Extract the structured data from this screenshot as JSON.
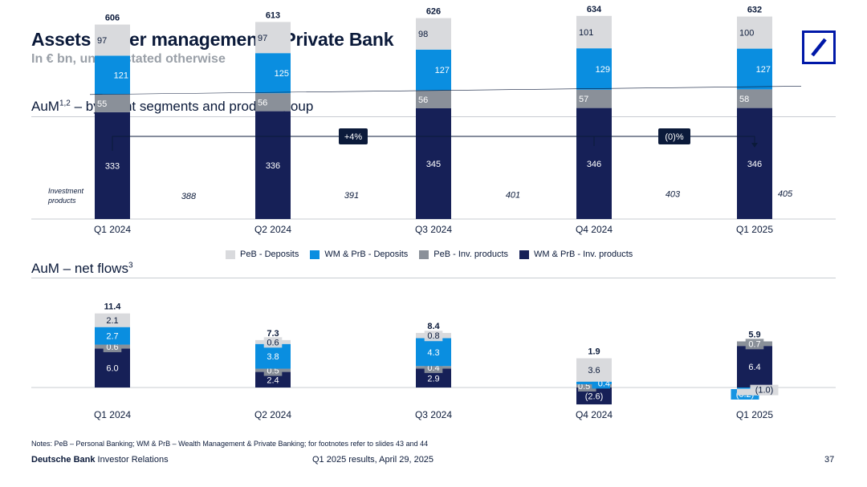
{
  "header": {
    "title": "Assets under management – Private Bank",
    "subtitle": "In € bn, unless stated otherwise"
  },
  "sections": {
    "aum_title": "AuM",
    "aum_sup": "1,2",
    "aum_title_rest": " – by client segments and product group",
    "flows_title": "AuM – net flows",
    "flows_sup": "3"
  },
  "colors": {
    "peb_deposits": "#d9dadd",
    "wm_deposits": "#0a8ee0",
    "peb_inv": "#8a9099",
    "wm_inv": "#162057",
    "navy": "#0b1a3a"
  },
  "legend": [
    {
      "label": "PeB - Deposits",
      "color": "#d9dadd"
    },
    {
      "label": "WM & PrB - Deposits",
      "color": "#0a8ee0"
    },
    {
      "label": "PeB - Inv. products",
      "color": "#8a9099"
    },
    {
      "label": "WM & PrB - Inv. products",
      "color": "#162057"
    }
  ],
  "chart_data": [
    {
      "type": "bar",
      "title": "AuM – by client segments and product group",
      "categories": [
        "Q1 2024",
        "Q2 2024",
        "Q3 2024",
        "Q4 2024",
        "Q1 2025"
      ],
      "series": [
        {
          "name": "WM & PrB - Inv. products",
          "values": [
            333,
            336,
            345,
            346,
            346
          ]
        },
        {
          "name": "PeB - Inv. products",
          "values": [
            55,
            56,
            56,
            57,
            58
          ]
        },
        {
          "name": "WM & PrB - Deposits",
          "values": [
            121,
            125,
            127,
            129,
            127
          ]
        },
        {
          "name": "PeB - Deposits",
          "values": [
            97,
            97,
            98,
            101,
            100
          ]
        }
      ],
      "totals": [
        "606",
        "613",
        "626",
        "634",
        "632"
      ],
      "investment_products_label": "Investment products",
      "investment_products_totals": [
        "388",
        "391",
        "401",
        "403",
        "405"
      ],
      "annotations": [
        {
          "label": "+4%",
          "from": "Q1 2024",
          "to": "Q4 2024"
        },
        {
          "label": "(0)%",
          "from": "Q4 2024",
          "to": "Q1 2025"
        }
      ]
    },
    {
      "type": "bar",
      "title": "AuM – net flows",
      "categories": [
        "Q1 2024",
        "Q2 2024",
        "Q3 2024",
        "Q4 2024",
        "Q1 2025"
      ],
      "series": [
        {
          "name": "WM & PrB - Inv. products",
          "values": [
            6.0,
            2.4,
            2.9,
            -2.6,
            6.4
          ],
          "labels": [
            "6.0",
            "2.4",
            "2.9",
            "(2.6)",
            "6.4"
          ]
        },
        {
          "name": "PeB - Inv. products",
          "values": [
            0.6,
            0.5,
            0.4,
            0.5,
            0.7
          ],
          "labels": [
            "0.6",
            "0.5",
            "0.4",
            "0.5",
            "0.7"
          ]
        },
        {
          "name": "WM & PrB - Deposits",
          "values": [
            2.7,
            3.8,
            4.3,
            0.4,
            -0.2
          ],
          "labels": [
            "2.7",
            "3.8",
            "4.3",
            "0.4",
            "(0.2)"
          ]
        },
        {
          "name": "PeB - Deposits",
          "values": [
            2.1,
            0.6,
            0.8,
            3.6,
            -1.0
          ],
          "labels": [
            "2.1",
            "0.6",
            "0.8",
            "3.6",
            "(1.0)"
          ]
        }
      ],
      "totals": [
        "11.4",
        "7.3",
        "8.4",
        "1.9",
        "5.9"
      ]
    }
  ],
  "footer": {
    "notes": "Notes: PeB – Personal Banking; WM & PrB – Wealth Management & Private Banking; for footnotes refer to slides 43 and 44",
    "brand_bold": "Deutsche Bank",
    "brand_rest": " Investor Relations",
    "center": "Q1 2025 results, April 29, 2025",
    "page": "37"
  }
}
